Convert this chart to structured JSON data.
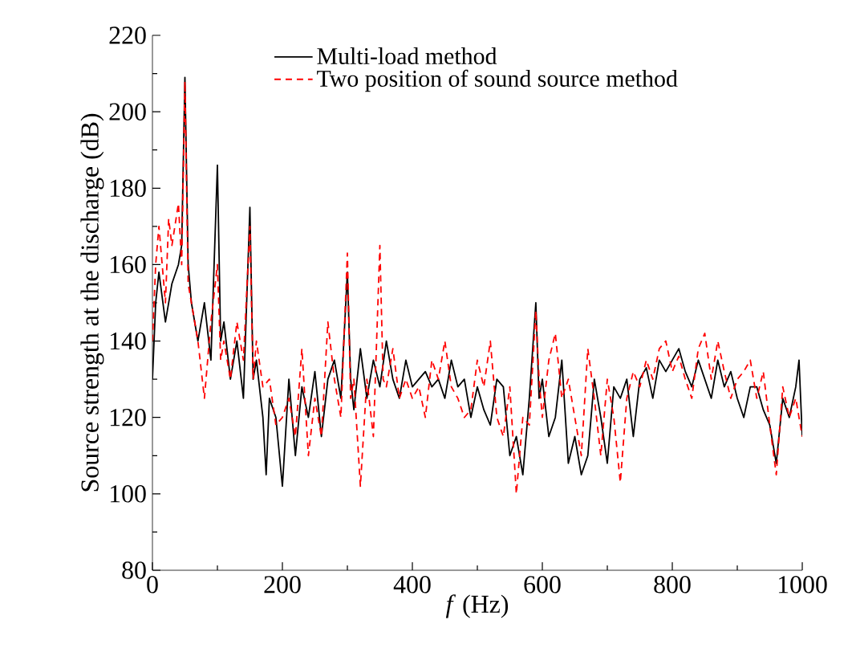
{
  "chart_data": {
    "type": "line",
    "xlabel": "*f* (Hz)",
    "ylabel": "Source strength at the discharge (dB)",
    "xlim": [
      0,
      1000
    ],
    "ylim": [
      80,
      220
    ],
    "xticks": [
      0,
      200,
      400,
      600,
      800,
      1000
    ],
    "yticks": [
      80,
      100,
      120,
      140,
      160,
      180,
      200,
      220
    ],
    "legend": "top",
    "grid": false,
    "series": [
      {
        "name": "Multi-load method",
        "color": "#000000",
        "line_style": "solid",
        "x": [
          0,
          5,
          10,
          20,
          30,
          40,
          45,
          50,
          55,
          60,
          70,
          80,
          90,
          100,
          105,
          110,
          120,
          130,
          140,
          150,
          155,
          160,
          170,
          175,
          180,
          190,
          200,
          210,
          220,
          230,
          240,
          250,
          260,
          270,
          280,
          290,
          300,
          305,
          310,
          320,
          330,
          340,
          350,
          360,
          370,
          380,
          390,
          400,
          410,
          420,
          430,
          440,
          450,
          460,
          470,
          480,
          490,
          500,
          510,
          520,
          530,
          540,
          550,
          560,
          570,
          580,
          590,
          595,
          600,
          610,
          620,
          630,
          640,
          650,
          660,
          670,
          680,
          690,
          700,
          710,
          720,
          730,
          740,
          750,
          760,
          770,
          780,
          790,
          800,
          810,
          820,
          830,
          840,
          850,
          860,
          870,
          880,
          890,
          900,
          910,
          920,
          930,
          940,
          950,
          960,
          970,
          980,
          990,
          995,
          1000
        ],
        "values": [
          130,
          150,
          158,
          145,
          155,
          160,
          165,
          209,
          160,
          150,
          140,
          150,
          135,
          186,
          140,
          145,
          130,
          140,
          125,
          175,
          130,
          135,
          120,
          105,
          125,
          120,
          102,
          130,
          110,
          128,
          120,
          132,
          115,
          130,
          135,
          125,
          158,
          130,
          122,
          138,
          125,
          135,
          128,
          140,
          130,
          125,
          135,
          128,
          130,
          132,
          128,
          130,
          125,
          135,
          128,
          130,
          120,
          128,
          122,
          118,
          130,
          128,
          110,
          115,
          105,
          125,
          150,
          125,
          130,
          115,
          120,
          135,
          108,
          115,
          105,
          110,
          130,
          120,
          108,
          128,
          125,
          130,
          115,
          130,
          133,
          125,
          135,
          132,
          135,
          138,
          132,
          128,
          135,
          130,
          125,
          135,
          128,
          132,
          125,
          120,
          128,
          128,
          122,
          118,
          108,
          125,
          120,
          128,
          135,
          115
        ]
      },
      {
        "name": "Two position of sound source method",
        "color": "#ff0000",
        "line_style": "dashed",
        "x": [
          0,
          5,
          10,
          20,
          25,
          30,
          40,
          45,
          50,
          55,
          60,
          70,
          80,
          90,
          100,
          105,
          110,
          120,
          130,
          140,
          150,
          155,
          160,
          170,
          180,
          190,
          200,
          210,
          220,
          230,
          240,
          250,
          260,
          270,
          280,
          290,
          300,
          305,
          310,
          320,
          330,
          340,
          350,
          355,
          360,
          370,
          380,
          390,
          400,
          410,
          420,
          430,
          440,
          450,
          460,
          470,
          480,
          490,
          500,
          510,
          520,
          530,
          540,
          550,
          560,
          570,
          580,
          590,
          595,
          600,
          610,
          620,
          630,
          640,
          650,
          660,
          670,
          680,
          690,
          700,
          710,
          720,
          730,
          740,
          750,
          760,
          770,
          780,
          790,
          800,
          810,
          820,
          830,
          840,
          850,
          860,
          870,
          880,
          890,
          900,
          910,
          920,
          930,
          940,
          950,
          960,
          970,
          980,
          990,
          1000
        ],
        "values": [
          140,
          160,
          170,
          150,
          172,
          165,
          176,
          160,
          208,
          155,
          150,
          140,
          125,
          145,
          160,
          135,
          140,
          130,
          145,
          135,
          170,
          130,
          140,
          128,
          130,
          118,
          120,
          125,
          115,
          138,
          110,
          125,
          115,
          145,
          130,
          120,
          163,
          125,
          130,
          102,
          130,
          115,
          165,
          130,
          128,
          138,
          125,
          130,
          125,
          128,
          120,
          135,
          130,
          140,
          128,
          125,
          120,
          122,
          135,
          128,
          140,
          120,
          115,
          128,
          100,
          120,
          118,
          148,
          130,
          120,
          135,
          142,
          125,
          130,
          120,
          110,
          138,
          125,
          110,
          130,
          120,
          103,
          125,
          132,
          128,
          135,
          130,
          138,
          140,
          132,
          136,
          130,
          125,
          138,
          142,
          130,
          140,
          132,
          125,
          130,
          132,
          135,
          125,
          132,
          118,
          105,
          128,
          120,
          125,
          115
        ]
      }
    ]
  }
}
